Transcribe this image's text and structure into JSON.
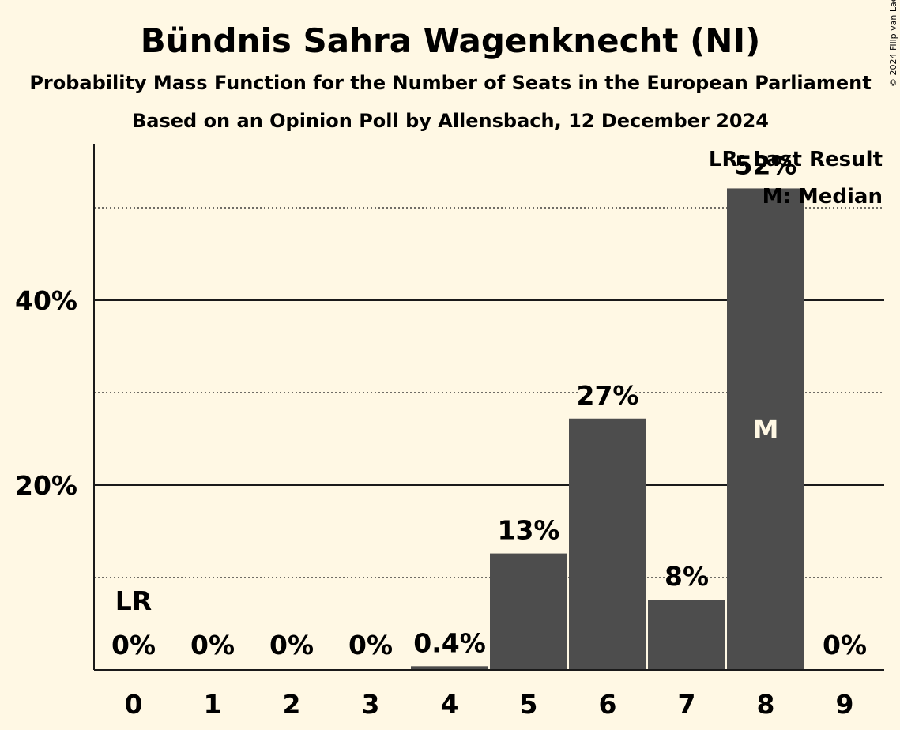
{
  "title": "Bündnis Sahra Wagenknecht (NI)",
  "subtitle1": "Probability Mass Function for the Number of Seats in the European Parliament",
  "subtitle2": "Based on an Opinion Poll by Allensbach, 12 December 2024",
  "copyright": "© 2024 Filip van Laenen",
  "legend": {
    "last_result": "LR: Last Result",
    "median": "M: Median"
  },
  "colors": {
    "background": "#fff8e4",
    "bar": "#4d4d4d",
    "text": "#1a1a1a",
    "median_marker": "#fff8e4"
  },
  "chart_data": {
    "type": "bar",
    "categories": [
      "0",
      "1",
      "2",
      "3",
      "4",
      "5",
      "6",
      "7",
      "8",
      "9"
    ],
    "values": [
      0,
      0,
      0,
      0,
      0.4,
      12.6,
      27.2,
      7.6,
      52.1,
      0
    ],
    "labels": [
      "0%",
      "0%",
      "0%",
      "0%",
      "0.4%",
      "13%",
      "27%",
      "8%",
      "52%",
      "0%"
    ],
    "ytick_labels": [
      {
        "value": 20,
        "label": "20%"
      },
      {
        "value": 40,
        "label": "40%"
      }
    ],
    "gridlines_solid": [
      20,
      40
    ],
    "gridlines_dotted": [
      10,
      30,
      50
    ],
    "ylim": [
      0,
      57
    ],
    "last_result_category": "0",
    "last_result_marker": "LR",
    "median_category": "8",
    "median_marker": "M",
    "legend_position": "top-right"
  }
}
